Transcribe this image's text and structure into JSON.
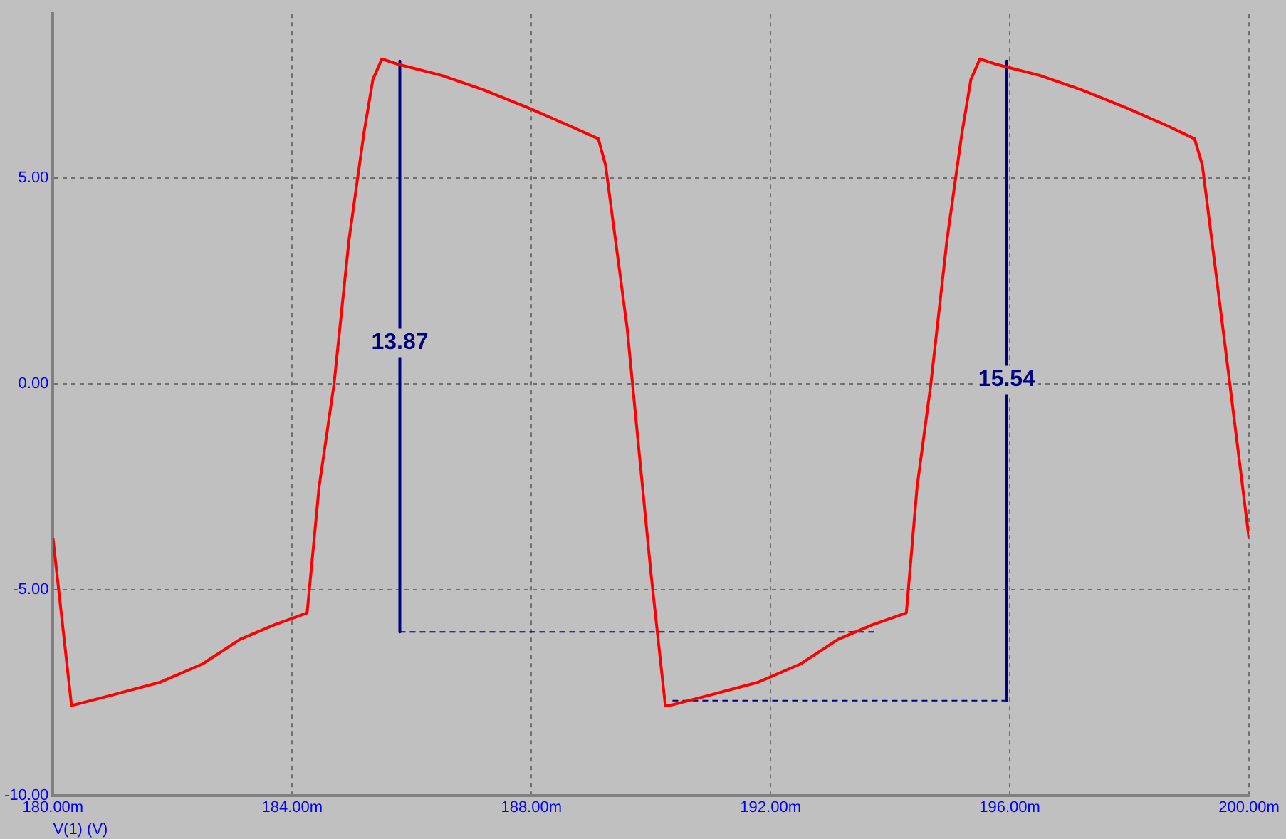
{
  "chart_data": {
    "type": "line",
    "xlabel": "V(1) (V)",
    "xlim": [
      180,
      200
    ],
    "xticks": [
      {
        "value": 180,
        "label": "180.00m"
      },
      {
        "value": 184,
        "label": "184.00m"
      },
      {
        "value": 188,
        "label": "188.00m"
      },
      {
        "value": 192,
        "label": "192.00m"
      },
      {
        "value": 196,
        "label": "196.00m"
      },
      {
        "value": 200,
        "label": "200.00m"
      }
    ],
    "ylim": [
      -10,
      9
    ],
    "yticks": [
      {
        "value": -10,
        "label": "-10.00"
      },
      {
        "value": -5,
        "label": "-5.00"
      },
      {
        "value": 0,
        "label": "0.00"
      },
      {
        "value": 5,
        "label": "5.00"
      }
    ],
    "grid": true,
    "series": [
      {
        "color": "#ff0000",
        "x": [
          180,
          180.31,
          181,
          181.8,
          182.5,
          183.13,
          183.7,
          184.25,
          184.45,
          184.7,
          184.95,
          185.2,
          185.35,
          185.5,
          185.75,
          186.5,
          187.2,
          187.97,
          188.6,
          189.12,
          189.24,
          189.6,
          189.81,
          190.0,
          190.24,
          190.31,
          191,
          191.8,
          192.5,
          193.13,
          193.7,
          194.27,
          194.45,
          194.68,
          194.95,
          195.2,
          195.35,
          195.5,
          195.75,
          196.5,
          197.2,
          197.97,
          198.6,
          199.09,
          199.22,
          199.6,
          200
        ],
        "values": [
          -3.74,
          -7.81,
          -7.55,
          -7.24,
          -6.8,
          -6.2,
          -5.85,
          -5.56,
          -2.5,
          0,
          3.5,
          6.1,
          7.4,
          7.9,
          7.78,
          7.5,
          7.15,
          6.7,
          6.3,
          5.96,
          5.32,
          1.38,
          -1.78,
          -4.6,
          -7.81,
          -7.81,
          -7.55,
          -7.24,
          -6.8,
          -6.2,
          -5.85,
          -5.56,
          -2.5,
          0,
          3.5,
          6.1,
          7.4,
          7.9,
          7.78,
          7.5,
          7.15,
          6.7,
          6.3,
          5.96,
          5.32,
          0.94,
          -3.74
        ]
      },
      {
        "color": "#000080",
        "x": [
          185.8,
          185.8
        ],
        "values": [
          7.85,
          -6.02
        ]
      },
      {
        "color": "#000080",
        "x": [
          195.95,
          195.95
        ],
        "values": [
          7.85,
          -7.69
        ]
      },
      {
        "color": "#000080",
        "line_style": "dashed",
        "x": [
          185.8,
          193.8
        ],
        "values": [
          -6.02,
          -6.02
        ]
      },
      {
        "color": "#000080",
        "line_style": "dashed",
        "x": [
          190.36,
          195.95
        ],
        "values": [
          -7.69,
          -7.69
        ]
      }
    ],
    "annotations": [
      {
        "text": "13.87",
        "x": 185.8,
        "y": 1.0
      },
      {
        "text": "15.54",
        "x": 195.95,
        "y": 0.1
      }
    ]
  }
}
